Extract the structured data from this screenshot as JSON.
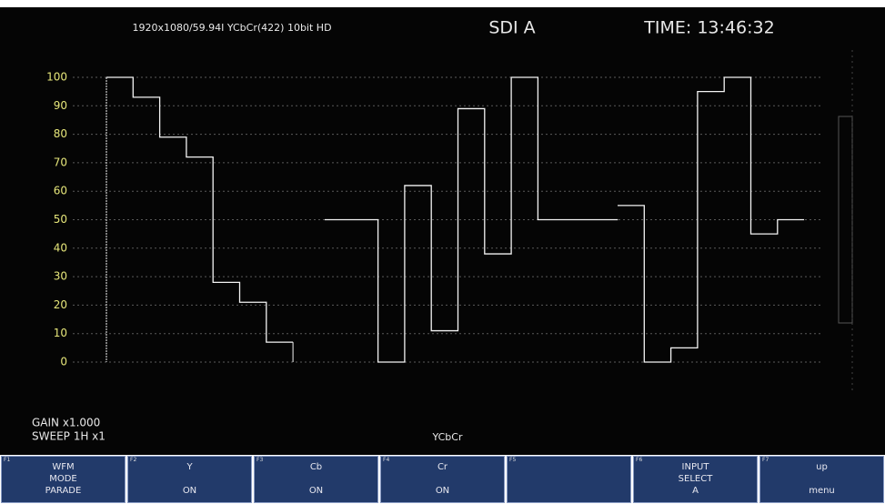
{
  "header": {
    "format": "1920x1080/59.94I YCbCr(422) 10bit HD",
    "input": "SDI A",
    "time": "TIME: 13:46:32"
  },
  "waveform": {
    "ylim": [
      0,
      100
    ],
    "yticks": [
      0,
      10,
      20,
      30,
      40,
      50,
      60,
      70,
      80,
      90,
      100
    ],
    "tick_color": "#e6e67a",
    "trace_color": "#f4f4f4",
    "traces": [
      {
        "values": [
          100,
          93,
          79,
          72,
          28,
          21,
          7
        ]
      },
      {
        "values": [
          50,
          50,
          0,
          62,
          11,
          89,
          38,
          100,
          50,
          50,
          50
        ]
      },
      {
        "values": [
          55,
          0,
          5,
          95,
          100,
          45,
          50
        ]
      }
    ]
  },
  "status": {
    "gain": "GAIN x1.000",
    "sweep": "SWEEP 1H x1",
    "mode": "YCbCr"
  },
  "function_keys": [
    {
      "key": "F1",
      "lines": [
        "WFM",
        "MODE",
        "PARADE"
      ]
    },
    {
      "key": "F2",
      "lines": [
        "Y",
        "ON"
      ]
    },
    {
      "key": "F3",
      "lines": [
        "Cb",
        "ON"
      ]
    },
    {
      "key": "F4",
      "lines": [
        "Cr",
        "ON"
      ]
    },
    {
      "key": "F5",
      "lines": []
    },
    {
      "key": "F6",
      "lines": [
        "INPUT",
        "SELECT",
        "A"
      ]
    },
    {
      "key": "F7",
      "lines": [
        "up",
        "menu"
      ]
    }
  ]
}
